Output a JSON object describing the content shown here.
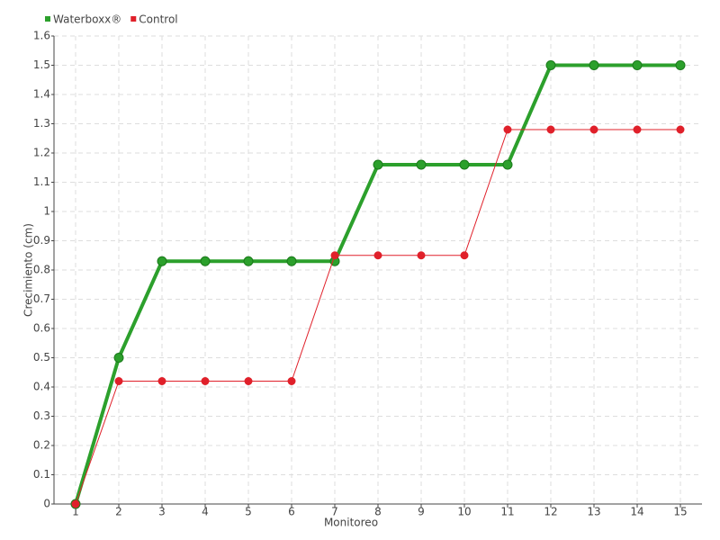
{
  "chart_data": {
    "type": "line",
    "xlabel": "Monitoreo",
    "ylabel": "Crecimiento (cm)",
    "categories": [
      "1",
      "2",
      "3",
      "4",
      "5",
      "6",
      "7",
      "8",
      "9",
      "10",
      "11",
      "12",
      "13",
      "14",
      "15"
    ],
    "series": [
      {
        "name": "Waterboxx®",
        "color": "#2ca02c",
        "values": [
          0,
          0.5,
          0.83,
          0.83,
          0.83,
          0.83,
          0.83,
          1.16,
          1.16,
          1.16,
          1.16,
          1.5,
          1.5,
          1.5,
          1.5
        ]
      },
      {
        "name": "Control",
        "color": "#e0202a",
        "values": [
          0,
          0.42,
          0.42,
          0.42,
          0.42,
          0.42,
          0.85,
          0.85,
          0.85,
          0.85,
          1.28,
          1.28,
          1.28,
          1.28,
          1.28
        ]
      }
    ],
    "ylim": [
      0,
      1.6
    ],
    "yticks": [
      0,
      0.1,
      0.2,
      0.3,
      0.4,
      0.5,
      0.6,
      0.7,
      0.8,
      0.9,
      1,
      1.1,
      1.2,
      1.3,
      1.4,
      1.5,
      1.6
    ],
    "grid": true,
    "legend": "top-left"
  }
}
